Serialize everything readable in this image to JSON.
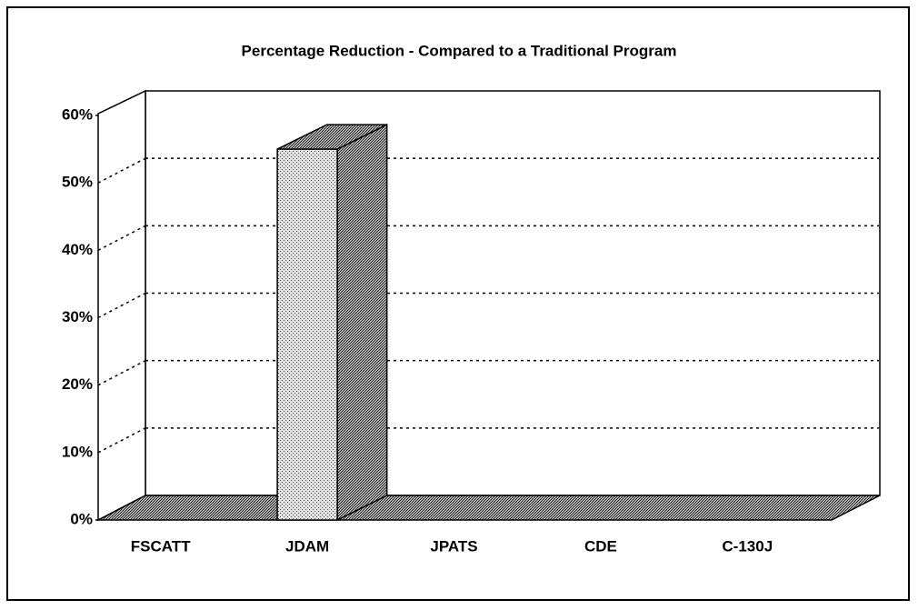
{
  "chart_data": {
    "type": "bar3d",
    "title": "Percentage Reduction - Compared to a Traditional Program",
    "categories": [
      "FSCATT",
      "JDAM",
      "JPATS",
      "CDE",
      "C-130J"
    ],
    "values": [
      0,
      55,
      0,
      0,
      0
    ],
    "color": "#c8c8c8",
    "ylim": [
      0,
      60
    ],
    "yticks": [
      {
        "value": 0,
        "label": "0%"
      },
      {
        "value": 10,
        "label": "10%"
      },
      {
        "value": 20,
        "label": "20%"
      },
      {
        "value": 30,
        "label": "30%"
      },
      {
        "value": 40,
        "label": "40%"
      },
      {
        "value": 50,
        "label": "50%"
      },
      {
        "value": 60,
        "label": "60%"
      }
    ],
    "grid": true
  }
}
